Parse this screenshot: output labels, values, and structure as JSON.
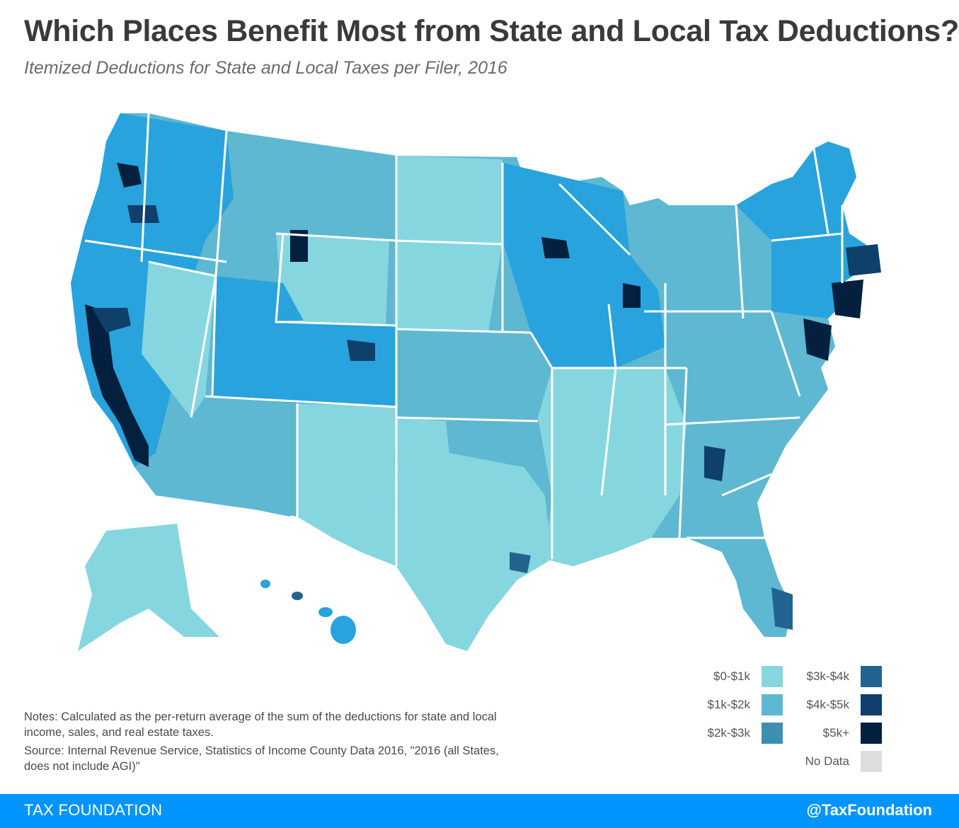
{
  "header": {
    "title": "Which Places Benefit Most from State and Local Tax Deductions?",
    "subtitle": "Itemized Deductions for State and Local Taxes per Filer, 2016"
  },
  "legend": {
    "items": [
      {
        "label": "$0-$1k",
        "color": "#86d6e0"
      },
      {
        "label": "$1k-$2k",
        "color": "#5eb8d2"
      },
      {
        "label": "$2k-$3k",
        "color": "#3c8fb0"
      },
      {
        "label": "$3k-$4k",
        "color": "#22648f"
      },
      {
        "label": "$4k-$5k",
        "color": "#0f3f6b"
      },
      {
        "label": "$5k+",
        "color": "#04203f"
      },
      {
        "label": "No Data",
        "color": "#dddddd"
      }
    ]
  },
  "notes": {
    "note": "Notes: Calculated as the per-return average of the sum of the deductions for state and local income, sales, and real estate taxes.",
    "source": "Source: Internal Revenue Service, Statistics of Income County Data 2016, \"2016 (all States, does not include AGI)\""
  },
  "footer": {
    "left": "TAX FOUNDATION",
    "right": "@TaxFoundation"
  },
  "colors": {
    "footer_bg": "#0094ff",
    "state_border": "#ffffff",
    "mid_fill": "#29a3dd"
  }
}
